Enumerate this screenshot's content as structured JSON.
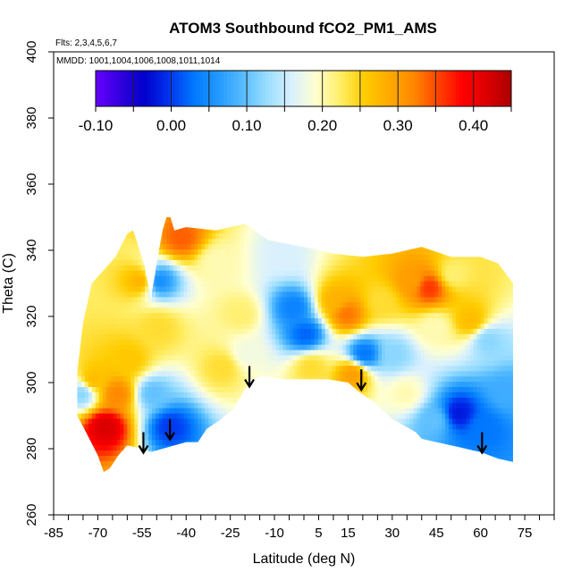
{
  "chart_data": {
    "type": "heatmap",
    "title": "ATOM3 Southbound fCO2_PM1_AMS",
    "flights_note": "Flts: 2,3,4,5,6,7",
    "dates_note": "MMDD: 1001,1004,1006,1008,1011,1014",
    "xlabel": "Latitude (deg N)",
    "ylabel": "Theta (C)",
    "xlim": [
      -85,
      85
    ],
    "ylim": [
      260,
      400
    ],
    "x_ticks": [
      -85,
      -80,
      -75,
      -70,
      -65,
      -60,
      -55,
      -50,
      -45,
      -40,
      -35,
      -30,
      -25,
      -20,
      -15,
      -10,
      -5,
      0,
      5,
      10,
      15,
      20,
      25,
      30,
      35,
      40,
      45,
      50,
      55,
      60,
      65,
      70,
      75,
      80,
      85
    ],
    "x_tick_labels": [
      {
        "value": -85,
        "label": "-85"
      },
      {
        "value": -70,
        "label": "-70"
      },
      {
        "value": -55,
        "label": "-55"
      },
      {
        "value": -40,
        "label": "-40"
      },
      {
        "value": -25,
        "label": "-25"
      },
      {
        "value": -10,
        "label": "-10"
      },
      {
        "value": 5,
        "label": "5"
      },
      {
        "value": 15,
        "label": "15"
      },
      {
        "value": 30,
        "label": "30"
      },
      {
        "value": 45,
        "label": "45"
      },
      {
        "value": 60,
        "label": "60"
      },
      {
        "value": 75,
        "label": "75"
      }
    ],
    "y_ticks": [
      {
        "value": 260,
        "label": "260"
      },
      {
        "value": 280,
        "label": "280"
      },
      {
        "value": 300,
        "label": "300"
      },
      {
        "value": 320,
        "label": "320"
      },
      {
        "value": 340,
        "label": "340"
      },
      {
        "value": 360,
        "label": "360"
      },
      {
        "value": 380,
        "label": "380"
      },
      {
        "value": 400,
        "label": "400"
      }
    ],
    "colorbar": {
      "range": [
        -0.1,
        0.45
      ],
      "tick_labels": [
        {
          "value": -0.1,
          "label": "-0.10"
        },
        {
          "value": 0.0,
          "label": "0.00"
        },
        {
          "value": 0.1,
          "label": "0.10"
        },
        {
          "value": 0.2,
          "label": "0.20"
        },
        {
          "value": 0.3,
          "label": "0.30"
        },
        {
          "value": 0.4,
          "label": "0.40"
        }
      ],
      "colors": [
        "#6600ff",
        "#3300dd",
        "#0000cc",
        "#0033ee",
        "#0077ff",
        "#2299ff",
        "#55bbff",
        "#99ddff",
        "#d8f0ff",
        "#ffffd0",
        "#ffee66",
        "#ffcc00",
        "#ffaa00",
        "#ff8800",
        "#ff4400",
        "#ff0000",
        "#dd0000",
        "#aa0000"
      ]
    },
    "grid": false,
    "data_boundary": {
      "top": [
        [
          -77,
          303
        ],
        [
          -75,
          318
        ],
        [
          -72,
          330
        ],
        [
          -68,
          334
        ],
        [
          -64,
          338
        ],
        [
          -60,
          345
        ],
        [
          -58,
          346
        ],
        [
          -54,
          335
        ],
        [
          -52,
          325
        ],
        [
          -50,
          336
        ],
        [
          -48,
          346
        ],
        [
          -46,
          352
        ],
        [
          -44,
          346
        ],
        [
          -40,
          347
        ],
        [
          -30,
          346
        ],
        [
          -20,
          348
        ],
        [
          -12,
          343
        ],
        [
          0,
          341
        ],
        [
          10,
          339
        ],
        [
          20,
          338
        ],
        [
          30,
          339
        ],
        [
          40,
          341
        ],
        [
          50,
          338
        ],
        [
          60,
          338
        ],
        [
          66,
          336
        ],
        [
          71,
          330
        ]
      ],
      "bottom": [
        [
          71,
          276
        ],
        [
          66,
          277
        ],
        [
          60,
          279
        ],
        [
          50,
          281
        ],
        [
          45,
          282
        ],
        [
          40,
          283
        ],
        [
          38,
          285
        ],
        [
          30,
          289
        ],
        [
          24,
          294
        ],
        [
          19,
          297
        ],
        [
          15,
          300
        ],
        [
          8,
          301
        ],
        [
          0,
          301
        ],
        [
          -6,
          301
        ],
        [
          -14,
          302
        ],
        [
          -18,
          301
        ],
        [
          -20,
          298
        ],
        [
          -24,
          292
        ],
        [
          -28,
          289
        ],
        [
          -33,
          286
        ],
        [
          -36,
          282
        ],
        [
          -40,
          282
        ],
        [
          -44,
          281
        ],
        [
          -48,
          280
        ],
        [
          -52,
          279
        ],
        [
          -55,
          280
        ],
        [
          -60,
          281
        ],
        [
          -63,
          278
        ],
        [
          -66,
          274
        ],
        [
          -68,
          273
        ],
        [
          -70,
          278
        ],
        [
          -74,
          285
        ],
        [
          -77,
          290
        ]
      ]
    },
    "value_patches": [
      {
        "lat": -68,
        "theta": 286,
        "value": 0.42
      },
      {
        "lat": -64,
        "theta": 296,
        "value": 0.32
      },
      {
        "lat": -72,
        "theta": 300,
        "value": 0.27
      },
      {
        "lat": -60,
        "theta": 306,
        "value": 0.26
      },
      {
        "lat": -52,
        "theta": 296,
        "value": 0.1
      },
      {
        "lat": -46,
        "theta": 286,
        "value": 0.0
      },
      {
        "lat": -50,
        "theta": 316,
        "value": 0.24
      },
      {
        "lat": -56,
        "theta": 330,
        "value": 0.28
      },
      {
        "lat": -50,
        "theta": 330,
        "value": 0.05
      },
      {
        "lat": -42,
        "theta": 343,
        "value": 0.34
      },
      {
        "lat": -30,
        "theta": 336,
        "value": 0.2
      },
      {
        "lat": -22,
        "theta": 320,
        "value": 0.22
      },
      {
        "lat": -28,
        "theta": 304,
        "value": 0.24
      },
      {
        "lat": -20,
        "theta": 308,
        "value": 0.18
      },
      {
        "lat": -4,
        "theta": 322,
        "value": 0.04
      },
      {
        "lat": 0,
        "theta": 314,
        "value": 0.02
      },
      {
        "lat": -8,
        "theta": 338,
        "value": 0.16
      },
      {
        "lat": 2,
        "theta": 304,
        "value": 0.24
      },
      {
        "lat": 10,
        "theta": 324,
        "value": 0.28
      },
      {
        "lat": 14,
        "theta": 320,
        "value": 0.33
      },
      {
        "lat": 20,
        "theta": 308,
        "value": 0.03
      },
      {
        "lat": 16,
        "theta": 302,
        "value": 0.3
      },
      {
        "lat": 26,
        "theta": 324,
        "value": 0.24
      },
      {
        "lat": 36,
        "theta": 330,
        "value": 0.3
      },
      {
        "lat": 42,
        "theta": 328,
        "value": 0.36
      },
      {
        "lat": 50,
        "theta": 332,
        "value": 0.22
      },
      {
        "lat": 44,
        "theta": 316,
        "value": 0.2
      },
      {
        "lat": 56,
        "theta": 318,
        "value": 0.27
      },
      {
        "lat": 62,
        "theta": 312,
        "value": 0.12
      },
      {
        "lat": 34,
        "theta": 296,
        "value": 0.2
      },
      {
        "lat": 30,
        "theta": 308,
        "value": 0.12
      },
      {
        "lat": 52,
        "theta": 290,
        "value": -0.02
      },
      {
        "lat": 60,
        "theta": 286,
        "value": 0.03
      },
      {
        "lat": 44,
        "theta": 288,
        "value": 0.1
      },
      {
        "lat": 68,
        "theta": 296,
        "value": 0.08
      },
      {
        "lat": -76,
        "theta": 296,
        "value": 0.12
      }
    ],
    "arrows": [
      {
        "lat": -54.5,
        "theta": 285,
        "direction": "down"
      },
      {
        "lat": -45.5,
        "theta": 289,
        "direction": "down"
      },
      {
        "lat": -18.5,
        "theta": 305,
        "direction": "down"
      },
      {
        "lat": 19.5,
        "theta": 304,
        "direction": "down"
      },
      {
        "lat": 60.5,
        "theta": 285,
        "direction": "down"
      }
    ]
  }
}
